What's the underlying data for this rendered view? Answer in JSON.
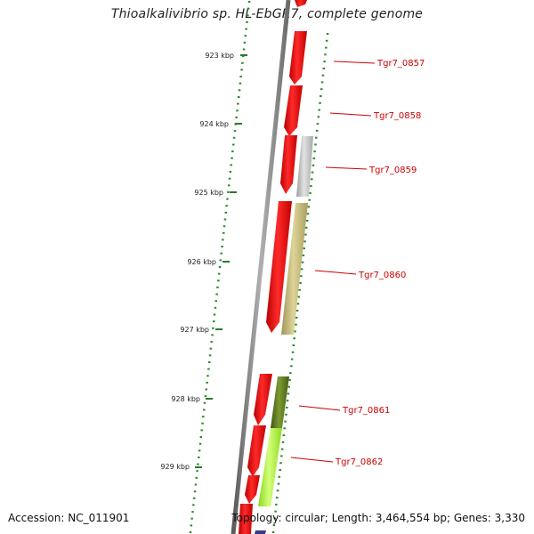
{
  "header": {
    "title": "Thioalkalivibrio sp. HL-EbGR7, complete genome"
  },
  "ruler": {
    "ticks": [
      "923 kbp",
      "924 kbp",
      "925 kbp",
      "926 kbp",
      "927 kbp",
      "928 kbp",
      "929 kbp"
    ]
  },
  "genes": [
    {
      "id": "Tgr7_0857",
      "color": "#ff0000",
      "strand": "reverse"
    },
    {
      "id": "Tgr7_0858",
      "color": "#ff0000",
      "strand": "reverse"
    },
    {
      "id": "Tgr7_0859",
      "color": "#ff0000",
      "strand": "reverse"
    },
    {
      "id": "Tgr7_0860",
      "color": "#ff0000",
      "strand": "reverse"
    },
    {
      "id": "Tgr7_0861",
      "color": "#ff0000",
      "strand": "reverse"
    },
    {
      "id": "Tgr7_0862",
      "color": "#ff0000",
      "strand": "reverse"
    }
  ],
  "cog_colors": {
    "grey": "#bdbdbd",
    "khaki": "#c8bd7e",
    "olive": "#5f7a1e",
    "lime": "#aaff33",
    "navy": "#3a3a8a"
  },
  "footer": {
    "accession": "Accession: NC_011901",
    "summary": "Topology: circular; Length: 3,464,554 bp; Genes: 3,330"
  }
}
